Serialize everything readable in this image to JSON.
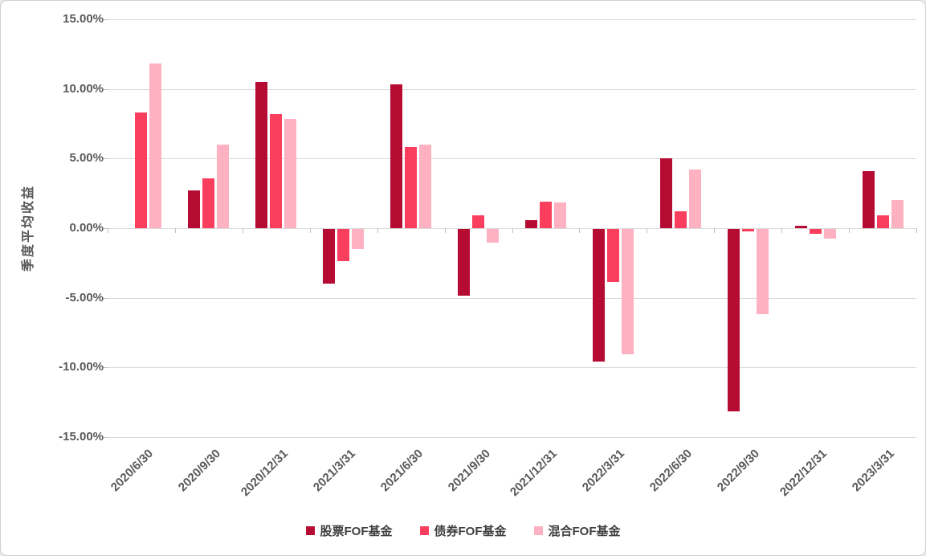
{
  "chart_data": {
    "type": "bar",
    "title": "",
    "xlabel": "",
    "ylabel": "季度平均收益",
    "ylim": [
      -15,
      15
    ],
    "ytick_step": 5,
    "ytick_labels": [
      "15.00%",
      "10.00%",
      "5.00%",
      "0.00%",
      "-5.00%",
      "-10.00%",
      "-15.00%"
    ],
    "grid": true,
    "legend_position": "bottom",
    "categories": [
      "2020/6/30",
      "2020/9/30",
      "2020/12/31",
      "2021/3/31",
      "2021/6/30",
      "2021/9/30",
      "2021/12/31",
      "2022/3/31",
      "2022/6/30",
      "2022/9/30",
      "2022/12/31",
      "2023/3/31"
    ],
    "series": [
      {
        "name": "股票FOF基金",
        "color": "#b60c34",
        "values": [
          0,
          2.7,
          10.5,
          -3.9,
          10.35,
          -4.8,
          0.6,
          -9.5,
          5.0,
          -13.1,
          0.15,
          4.1
        ]
      },
      {
        "name": "债券FOF基金",
        "color": "#fa3e5e",
        "values": [
          8.3,
          3.6,
          8.2,
          -2.3,
          5.85,
          0.9,
          1.9,
          -3.8,
          1.2,
          -0.15,
          -0.35,
          0.9
        ]
      },
      {
        "name": "混合FOF基金",
        "color": "#fdb1c1",
        "values": [
          11.8,
          6.0,
          7.85,
          -1.45,
          6.0,
          -1.0,
          1.85,
          -9.0,
          4.2,
          -6.1,
          -0.7,
          2.0
        ]
      }
    ]
  }
}
